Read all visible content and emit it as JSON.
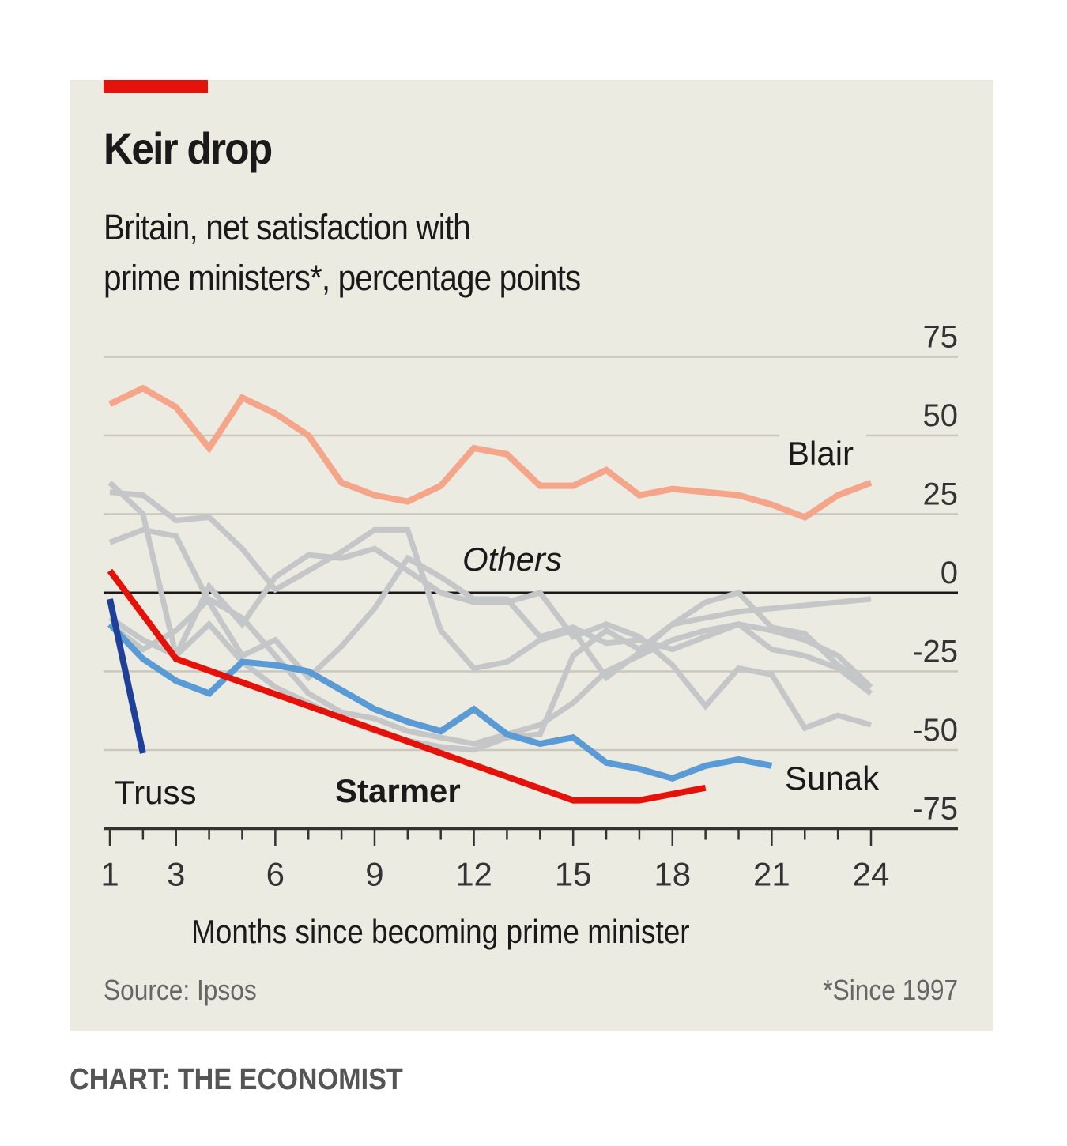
{
  "header": {
    "title": "Keir drop",
    "subtitle_line1": "Britain, net satisfaction with",
    "subtitle_line2": "prime ministers*, percentage points"
  },
  "footer": {
    "source": "Source: Ipsos",
    "footnote": "*Since 1997",
    "credit": "CHART: THE ECONOMIST"
  },
  "colors": {
    "background": "#ecebe1",
    "accent": "#e3120b",
    "starmer": "#e3120b",
    "sunak": "#5b9bd5",
    "truss": "#1f3f99",
    "blair": "#f4a58a",
    "others": "#c4c6c8",
    "grid": "#c9c8bd",
    "zero_line": "#1a1a1a"
  },
  "chart_data": {
    "type": "line",
    "title": "Keir drop",
    "subtitle": "Britain, net satisfaction with prime ministers*, percentage points",
    "xlabel": "Months since becoming prime minister",
    "ylabel": "",
    "xlim": [
      1,
      24
    ],
    "ylim": [
      -75,
      75
    ],
    "x_ticks": [
      1,
      3,
      6,
      9,
      12,
      15,
      18,
      21,
      24
    ],
    "y_ticks": [
      75,
      50,
      25,
      0,
      -25,
      -50,
      -75
    ],
    "y_axis_side": "right",
    "grid": true,
    "series": [
      {
        "name": "Blair",
        "label": "Blair",
        "color_key": "blair",
        "x": [
          1,
          2,
          3,
          4,
          5,
          6,
          7,
          8,
          9,
          10,
          11,
          12,
          13,
          14,
          15,
          16,
          17,
          18,
          19,
          20,
          21,
          22,
          23,
          24
        ],
        "values": [
          60,
          65,
          59,
          46,
          62,
          57,
          50,
          35,
          31,
          29,
          34,
          46,
          44,
          34,
          34,
          39,
          31,
          33,
          32,
          31,
          28,
          24,
          31,
          35
        ]
      },
      {
        "name": "Others 1",
        "label": "",
        "color_key": "others",
        "x": [
          1,
          2,
          3,
          4,
          5,
          6,
          7,
          8,
          9,
          10,
          11,
          12,
          13,
          14,
          15,
          16,
          17,
          18,
          19,
          20,
          21,
          22,
          23,
          24
        ],
        "values": [
          32,
          31,
          23,
          24,
          14,
          1,
          7,
          13,
          20,
          20,
          -12,
          -24,
          -22,
          -15,
          -12,
          -27,
          -19,
          -10,
          -3,
          0,
          -11,
          -13,
          -23,
          -30
        ]
      },
      {
        "name": "Others 2",
        "label": "",
        "color_key": "others",
        "x": [
          1,
          2,
          3,
          4,
          5,
          6,
          7,
          8,
          9,
          10,
          11,
          12,
          13,
          14,
          15,
          16,
          17,
          18,
          19,
          20,
          21,
          22,
          23,
          24
        ],
        "values": [
          16,
          20,
          18,
          -3,
          -20,
          -15,
          -27,
          -17,
          -5,
          11,
          5,
          -2,
          -2,
          -14,
          -11,
          -16,
          -15,
          -18,
          -14,
          -10,
          -18,
          -20,
          -24,
          -32
        ]
      },
      {
        "name": "Others 3",
        "label": "",
        "color_key": "others",
        "x": [
          1,
          2,
          3,
          4,
          5,
          6,
          7,
          8,
          9,
          10,
          11,
          12,
          13,
          14,
          15,
          16,
          17,
          18,
          19,
          20,
          21,
          22,
          23,
          24
        ],
        "values": [
          35,
          25,
          -20,
          2,
          -10,
          5,
          12,
          11,
          14,
          7,
          0,
          -3,
          -3,
          0,
          -14,
          -10,
          -14,
          -23,
          -36,
          -24,
          -26,
          -43,
          -39,
          -42
        ]
      },
      {
        "name": "Others 4",
        "label": "",
        "color_key": "others",
        "x": [
          1,
          2,
          3,
          4,
          5,
          6,
          7,
          8,
          9,
          10,
          11,
          12,
          13,
          14,
          15,
          16,
          17,
          18,
          19,
          20,
          21,
          22,
          23,
          24
        ],
        "values": [
          -8,
          -15,
          -20,
          -10,
          -22,
          -30,
          -35,
          -40,
          -44,
          -47,
          -49,
          -50,
          -46,
          -45,
          -20,
          -12,
          -18,
          -10,
          -8,
          -6,
          -5,
          -4,
          -3,
          -2
        ]
      },
      {
        "name": "Others 5",
        "label": "",
        "color_key": "others",
        "x": [
          1,
          2,
          3,
          4,
          5,
          6,
          7,
          8,
          9,
          10,
          11,
          12,
          13,
          14,
          15,
          16,
          17,
          18,
          19,
          20,
          21,
          22,
          23,
          24
        ],
        "values": [
          -10,
          -18,
          -12,
          -2,
          -8,
          -20,
          -32,
          -38,
          -40,
          -44,
          -46,
          -48,
          -45,
          -42,
          -35,
          -25,
          -20,
          -15,
          -12,
          -10,
          -12,
          -15,
          -20,
          -30
        ]
      },
      {
        "name": "Sunak",
        "label": "Sunak",
        "color_key": "sunak",
        "x": [
          1,
          2,
          3,
          4,
          5,
          6,
          7,
          8,
          9,
          10,
          11,
          12,
          13,
          14,
          15,
          16,
          17,
          18,
          19,
          20,
          21
        ],
        "values": [
          -10,
          -21,
          -28,
          -32,
          -22,
          -23,
          -25,
          -31,
          -37,
          -41,
          -44,
          -37,
          -45,
          -48,
          -46,
          -54,
          -56,
          -59,
          -55,
          -53,
          -55
        ]
      },
      {
        "name": "Truss",
        "label": "Truss",
        "color_key": "truss",
        "x": [
          1,
          2
        ],
        "values": [
          -2,
          -51
        ]
      },
      {
        "name": "Starmer",
        "label": "Starmer",
        "color_key": "starmer",
        "x": [
          1,
          3,
          15,
          17,
          19
        ],
        "values": [
          7,
          -21,
          -66,
          -66,
          -62
        ]
      }
    ],
    "annotations": [
      {
        "text": "Others",
        "italic": true
      },
      {
        "text": "Blair"
      },
      {
        "text": "Sunak"
      },
      {
        "text": "Truss"
      },
      {
        "text": "Starmer",
        "bold": true
      }
    ]
  }
}
